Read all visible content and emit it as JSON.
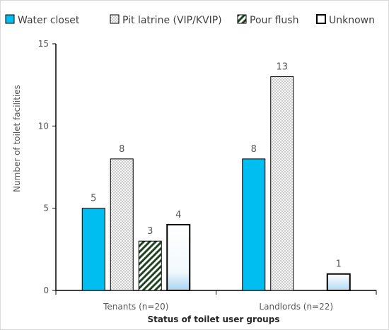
{
  "chart_data": {
    "type": "bar",
    "categories": [
      "Tenants (n=20)",
      "Landlords (n=22)"
    ],
    "series": [
      {
        "name": "Water closet",
        "values": [
          5,
          8
        ],
        "color": "#00BFF0",
        "pattern": "solid"
      },
      {
        "name": "Pit latrine (VIP/KVIP)",
        "values": [
          8,
          13
        ],
        "color": "#F2F2F2",
        "pattern": "dots"
      },
      {
        "name": "Pour flush",
        "values": [
          3,
          null
        ],
        "color": "#1E4620",
        "pattern": "diagonal-stripes"
      },
      {
        "name": "Unknown",
        "values": [
          4,
          1
        ],
        "color": "#000000",
        "pattern": "gradient-fill"
      }
    ],
    "xlabel": "Status of toilet user groups",
    "ylabel": "Number of toilet facilities",
    "ylim": [
      0,
      15
    ],
    "yticks": [
      0,
      5,
      10,
      15
    ],
    "grid": false,
    "legend_position": "top",
    "data_labels": true
  }
}
